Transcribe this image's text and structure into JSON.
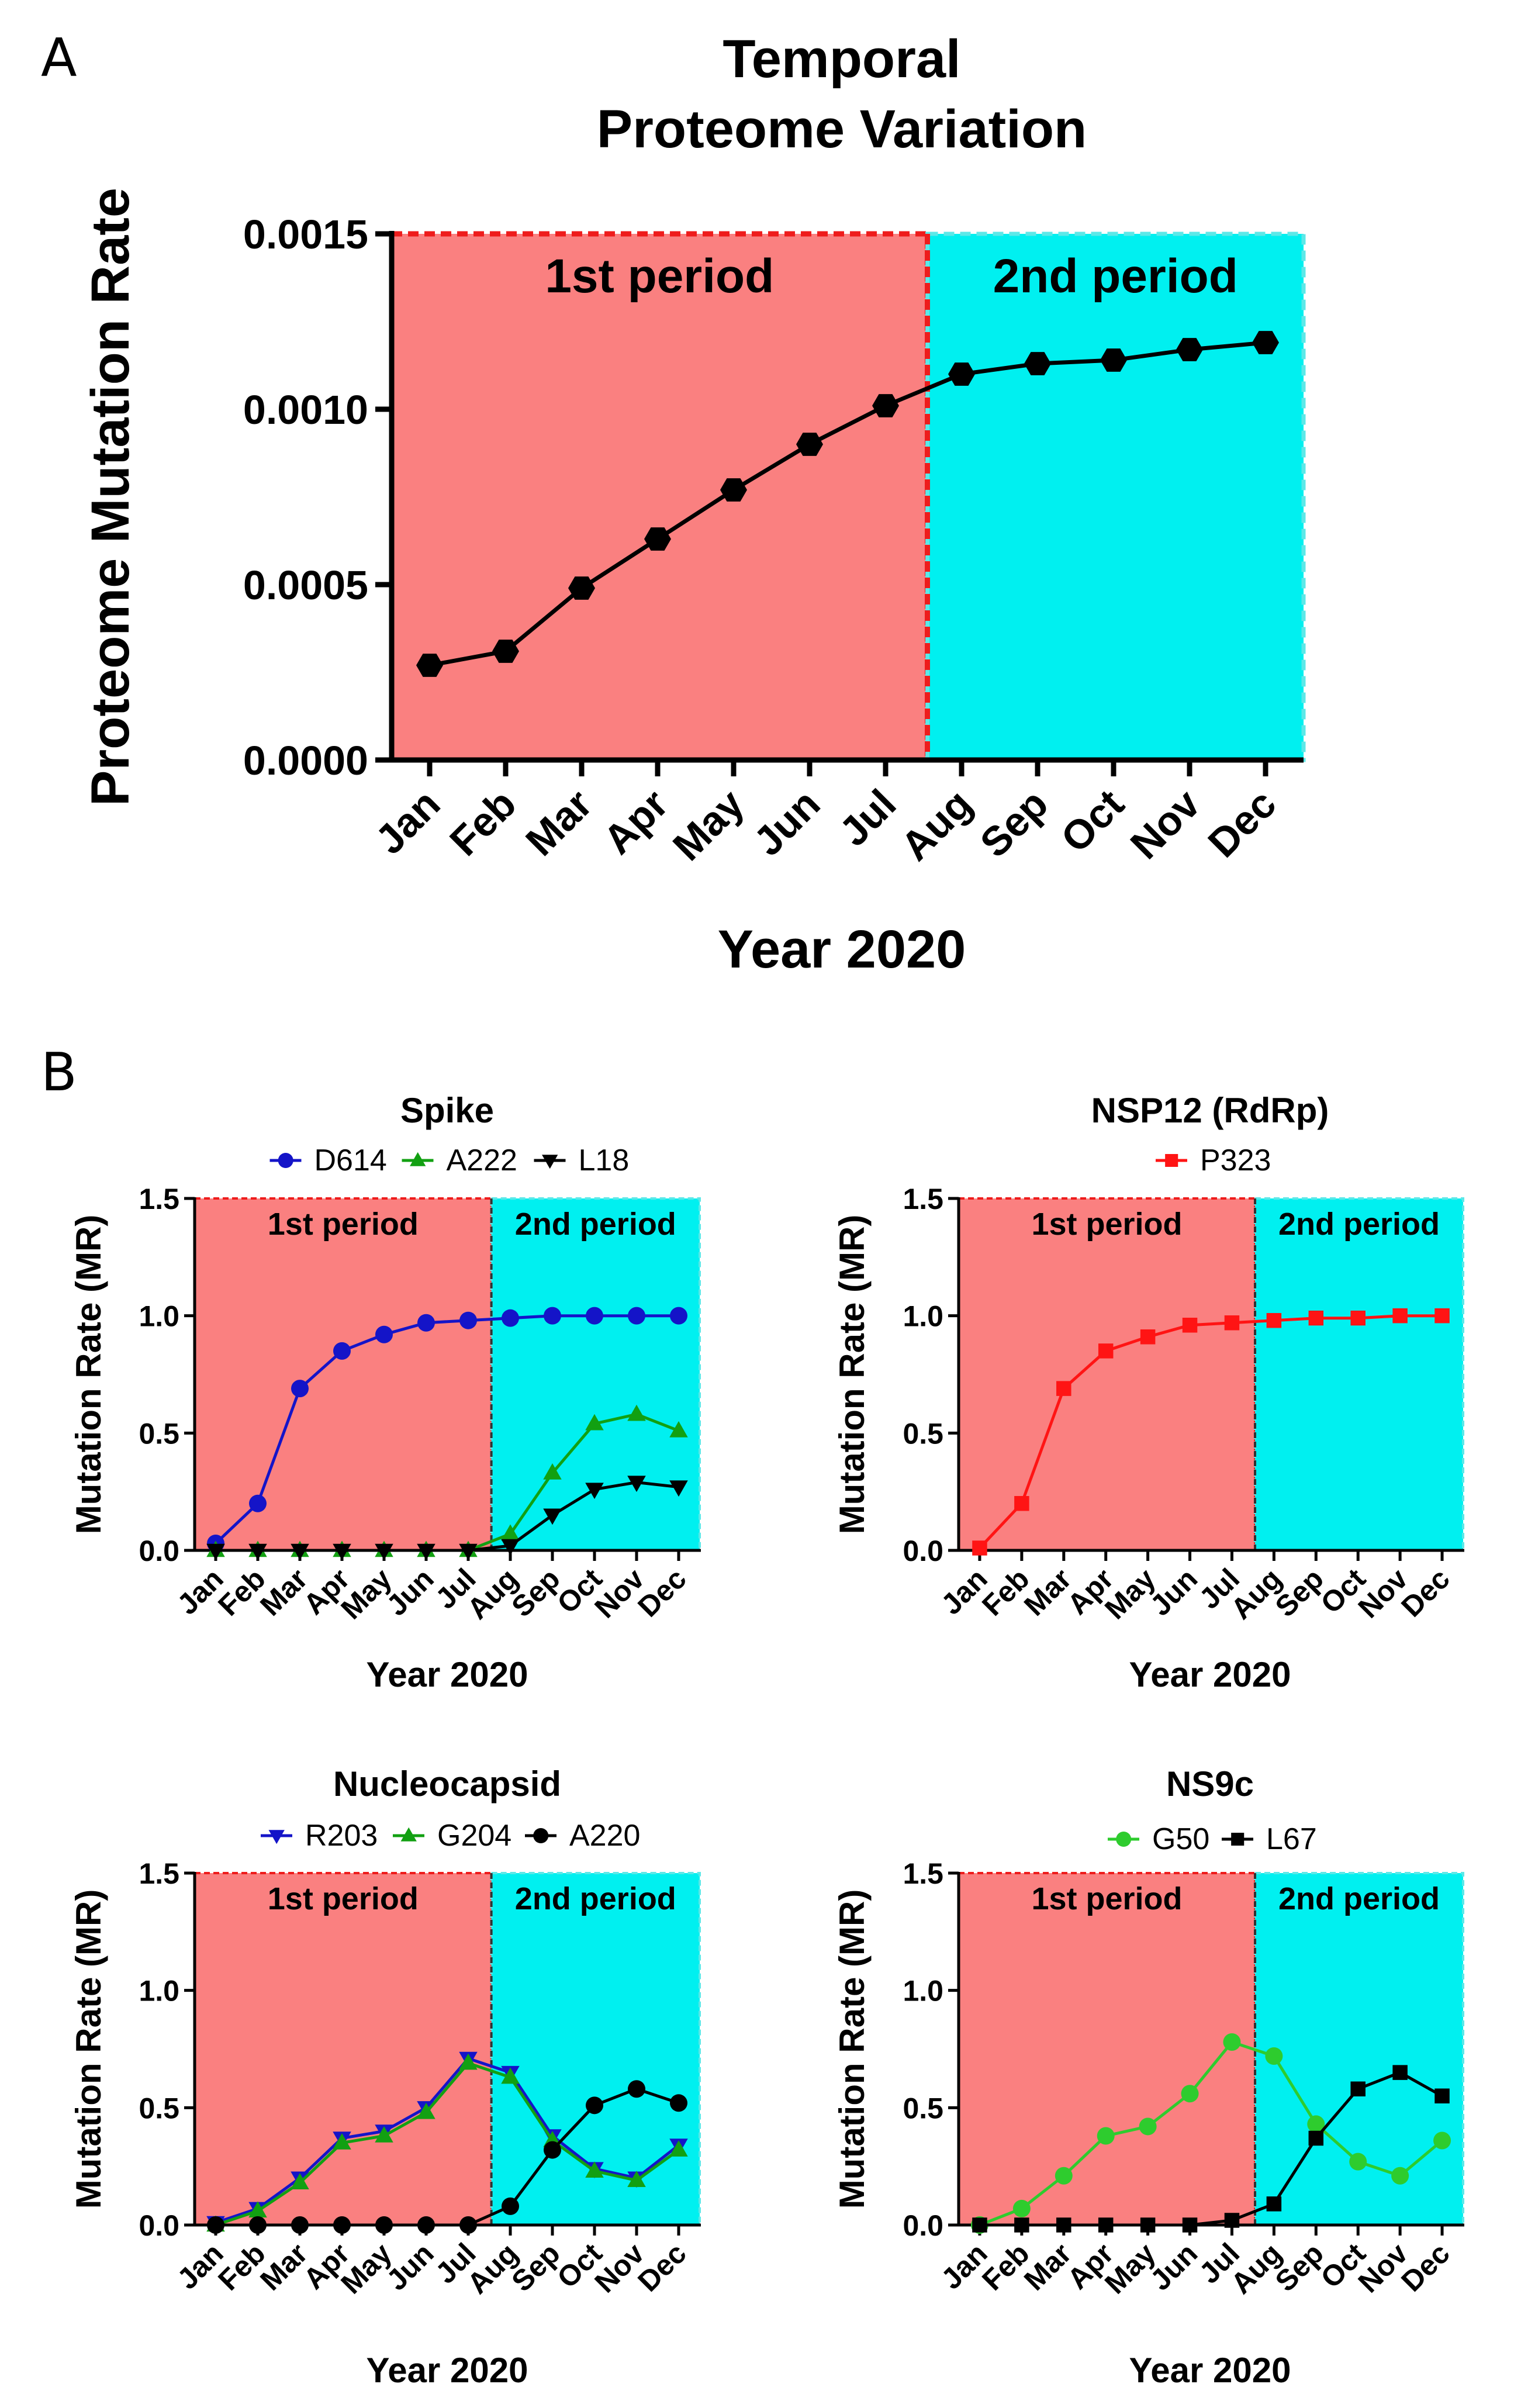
{
  "panel_a_letter": "A",
  "panel_b_letter": "B",
  "colors": {
    "first_period_fill": "#fa8080",
    "first_period_border": "#ee1c1c",
    "second_period_fill": "#00f0f0",
    "second_period_border": "#5ce8e8",
    "axis": "#000000",
    "blue": "#1414c8",
    "green": "#12a012",
    "green_light": "#2ecc2e",
    "black": "#000000",
    "red": "#ff1414"
  },
  "chart_data": [
    {
      "id": "A",
      "type": "line",
      "title": "Temporal\nProteome Variation",
      "title_lines": [
        "Temporal",
        "Proteome Variation"
      ],
      "xlabel": "Year 2020",
      "ylabel": "Proteome Mutation Rate",
      "categories": [
        "Jan",
        "Feb",
        "Mar",
        "Apr",
        "May",
        "Jun",
        "Jul",
        "Aug",
        "Sep",
        "Oct",
        "Nov",
        "Dec"
      ],
      "ylim": [
        0,
        0.0015
      ],
      "yticks": [
        0,
        0.0005,
        0.001,
        0.0015
      ],
      "ytick_labels": [
        "0.0000",
        "0.0005",
        "0.0010",
        "0.0015"
      ],
      "regions": [
        {
          "label": "1st period",
          "from": "Jan",
          "to": "Jul"
        },
        {
          "label": "2nd period",
          "from": "Aug",
          "to": "Dec"
        }
      ],
      "series": [
        {
          "name": "Proteome",
          "marker": "hexagon",
          "color": "#000000",
          "values": [
            0.00027,
            0.00031,
            0.00049,
            0.00063,
            0.00077,
            0.0009,
            0.00101,
            0.0011,
            0.00113,
            0.00114,
            0.00117,
            0.00119
          ]
        }
      ]
    },
    {
      "id": "B1",
      "type": "line",
      "title": "Spike",
      "xlabel": "Year 2020",
      "ylabel": "Mutation Rate (MR)",
      "categories": [
        "Jan",
        "Feb",
        "Mar",
        "Apr",
        "May",
        "Jun",
        "Jul",
        "Aug",
        "Sep",
        "Oct",
        "Nov",
        "Dec"
      ],
      "ylim": [
        0,
        1.5
      ],
      "yticks": [
        0,
        0.5,
        1,
        1.5
      ],
      "ytick_labels": [
        "0.0",
        "0.5",
        "1.0",
        "1.5"
      ],
      "regions": [
        {
          "label": "1st period",
          "from": "Jan",
          "to": "Jul"
        },
        {
          "label": "2nd period",
          "from": "Aug",
          "to": "Dec"
        }
      ],
      "series": [
        {
          "name": "D614",
          "marker": "circle",
          "color": "#1414c8",
          "values": [
            0.03,
            0.2,
            0.69,
            0.85,
            0.92,
            0.97,
            0.98,
            0.99,
            1.0,
            1.0,
            1.0,
            1.0
          ]
        },
        {
          "name": "A222",
          "marker": "triangle-up",
          "color": "#12a012",
          "values": [
            0,
            0,
            0,
            0,
            0,
            0,
            0,
            0.07,
            0.33,
            0.54,
            0.58,
            0.51
          ]
        },
        {
          "name": "L18",
          "marker": "triangle-down",
          "color": "#000000",
          "values": [
            0,
            0,
            0,
            0,
            0,
            0,
            0,
            0.02,
            0.15,
            0.26,
            0.29,
            0.27
          ]
        }
      ]
    },
    {
      "id": "B2",
      "type": "line",
      "title": "NSP12 (RdRp)",
      "xlabel": "Year 2020",
      "ylabel": "Mutation Rate (MR)",
      "categories": [
        "Jan",
        "Feb",
        "Mar",
        "Apr",
        "May",
        "Jun",
        "Jul",
        "Aug",
        "Sep",
        "Oct",
        "Nov",
        "Dec"
      ],
      "ylim": [
        0,
        1.5
      ],
      "yticks": [
        0,
        0.5,
        1,
        1.5
      ],
      "ytick_labels": [
        "0.0",
        "0.5",
        "1.0",
        "1.5"
      ],
      "regions": [
        {
          "label": "1st period",
          "from": "Jan",
          "to": "Jul"
        },
        {
          "label": "2nd period",
          "from": "Aug",
          "to": "Dec"
        }
      ],
      "series": [
        {
          "name": "P323",
          "marker": "square",
          "color": "#ff1414",
          "values": [
            0.01,
            0.2,
            0.69,
            0.85,
            0.91,
            0.96,
            0.97,
            0.98,
            0.99,
            0.99,
            1.0,
            1.0
          ]
        }
      ]
    },
    {
      "id": "B3",
      "type": "line",
      "title": "Nucleocapsid",
      "xlabel": "Year 2020",
      "ylabel": "Mutation Rate (MR)",
      "categories": [
        "Jan",
        "Feb",
        "Mar",
        "Apr",
        "May",
        "Jun",
        "Jul",
        "Aug",
        "Sep",
        "Oct",
        "Nov",
        "Dec"
      ],
      "ylim": [
        0,
        1.5
      ],
      "yticks": [
        0,
        0.5,
        1,
        1.5
      ],
      "ytick_labels": [
        "0.0",
        "0.5",
        "1.0",
        "1.5"
      ],
      "regions": [
        {
          "label": "1st period",
          "from": "Jan",
          "to": "Jul"
        },
        {
          "label": "2nd period",
          "from": "Aug",
          "to": "Dec"
        }
      ],
      "series": [
        {
          "name": "R203",
          "marker": "triangle-down",
          "color": "#1414c8",
          "values": [
            0.01,
            0.07,
            0.2,
            0.37,
            0.4,
            0.5,
            0.71,
            0.65,
            0.38,
            0.24,
            0.2,
            0.34
          ]
        },
        {
          "name": "G204",
          "marker": "triangle-up",
          "color": "#12a012",
          "values": [
            0.0,
            0.06,
            0.18,
            0.35,
            0.38,
            0.48,
            0.69,
            0.63,
            0.36,
            0.23,
            0.19,
            0.32
          ]
        },
        {
          "name": "A220",
          "marker": "circle",
          "color": "#000000",
          "values": [
            0,
            0,
            0,
            0,
            0,
            0,
            0,
            0.08,
            0.32,
            0.51,
            0.58,
            0.52
          ]
        }
      ]
    },
    {
      "id": "B4",
      "type": "line",
      "title": "NS9c",
      "xlabel": "Year 2020",
      "ylabel": "Mutation Rate (MR)",
      "categories": [
        "Jan",
        "Feb",
        "Mar",
        "Apr",
        "May",
        "Jun",
        "Jul",
        "Aug",
        "Sep",
        "Oct",
        "Nov",
        "Dec"
      ],
      "ylim": [
        0,
        1.5
      ],
      "yticks": [
        0,
        0.5,
        1,
        1.5
      ],
      "ytick_labels": [
        "0.0",
        "0.5",
        "1.0",
        "1.5"
      ],
      "regions": [
        {
          "label": "1st period",
          "from": "Jan",
          "to": "Jul"
        },
        {
          "label": "2nd period",
          "from": "Aug",
          "to": "Dec"
        }
      ],
      "series": [
        {
          "name": "G50",
          "marker": "circle",
          "color": "#2ecc2e",
          "values": [
            0.0,
            0.07,
            0.21,
            0.38,
            0.42,
            0.56,
            0.78,
            0.72,
            0.43,
            0.27,
            0.21,
            0.36
          ]
        },
        {
          "name": "L67",
          "marker": "square",
          "color": "#000000",
          "values": [
            0,
            0,
            0,
            0,
            0,
            0,
            0.02,
            0.09,
            0.37,
            0.58,
            0.65,
            0.55
          ]
        }
      ]
    }
  ]
}
